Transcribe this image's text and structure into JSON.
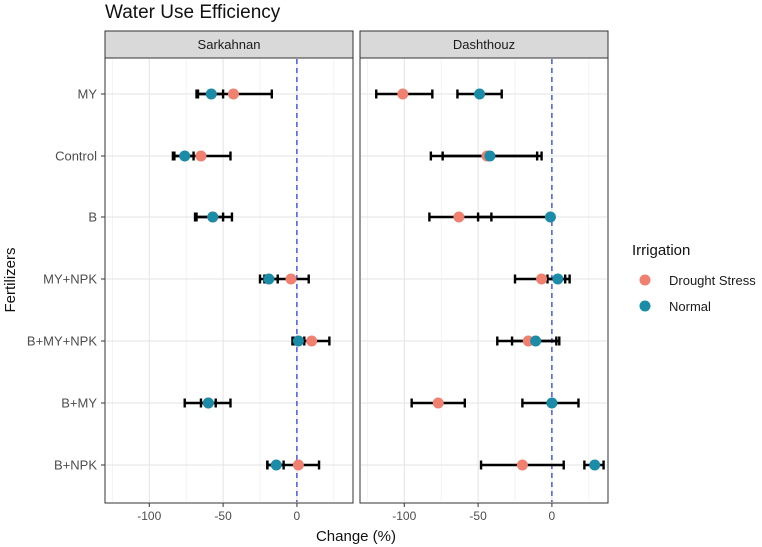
{
  "chart_data": {
    "type": "dot-errorbar",
    "title": "Water Use Efficiency",
    "xlabel": "Change (%)",
    "ylabel": "Fertilizers",
    "xlim": [
      -130,
      38
    ],
    "xticks": [
      -100,
      -50,
      0
    ],
    "xtick_labels": [
      "-100",
      "-50",
      "0"
    ],
    "reference_line_x": 0,
    "categories": [
      "MY",
      "Control",
      "B",
      "MY+NPK",
      "B+MY+NPK",
      "B+MY",
      "B+NPK"
    ],
    "legend": {
      "title": "Irrigation",
      "placement": "right",
      "entries": [
        "Drought Stress",
        "Normal"
      ]
    },
    "colors": {
      "Drought Stress": "#F08070",
      "Normal": "#1A8CA8",
      "panel_strip": "#D9D9D9",
      "refline": "#1F2FD8",
      "errorbar": "#000000"
    },
    "panels": [
      {
        "name": "Sarkahnan",
        "series": [
          {
            "name": "Drought Stress",
            "values": [
              -43,
              -65,
              -57,
              -4,
              10,
              -60,
              1
            ],
            "lower": [
              -67,
              -83,
              -69,
              -22,
              -3,
              -76,
              -20
            ],
            "upper": [
              -17,
              -45,
              -44,
              8,
              22,
              -45,
              15
            ]
          },
          {
            "name": "Normal",
            "values": [
              -58,
              -76,
              -57,
              -19,
              1,
              -60,
              -14
            ],
            "lower": [
              -68,
              -84,
              -68,
              -25,
              -2,
              -65,
              -20
            ],
            "upper": [
              -50,
              -70,
              -50,
              -13,
              5,
              -55,
              -9
            ]
          }
        ]
      },
      {
        "name": "Dashthouz",
        "series": [
          {
            "name": "Drought Stress",
            "values": [
              -101,
              -44,
              -63,
              -7,
              -16,
              -77,
              -20
            ],
            "lower": [
              -119,
              -82,
              -83,
              -25,
              -37,
              -95,
              -48
            ],
            "upper": [
              -81,
              -7,
              -41,
              9,
              3,
              -59,
              8
            ]
          },
          {
            "name": "Normal",
            "values": [
              -49,
              -42,
              -1,
              4,
              -11,
              0,
              29
            ],
            "lower": [
              -64,
              -74,
              -50,
              -3,
              -27,
              -20,
              22
            ],
            "upper": [
              -34,
              -10,
              -1,
              12,
              5,
              18,
              35
            ]
          }
        ]
      }
    ]
  }
}
